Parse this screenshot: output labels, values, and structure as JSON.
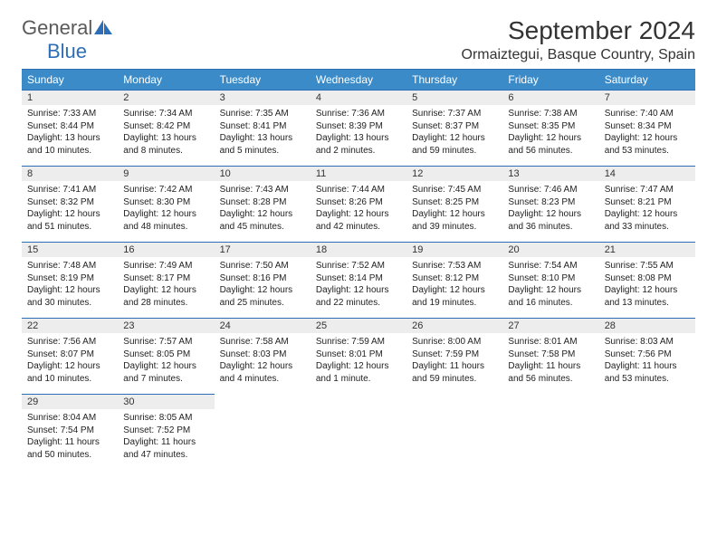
{
  "logo": {
    "text1": "General",
    "text2": "Blue"
  },
  "title": "September 2024",
  "location": "Ormaiztegui, Basque Country, Spain",
  "colors": {
    "header_bg": "#3b8bc8",
    "header_border": "#2d6fb6",
    "daynum_bg": "#ededed",
    "logo_gray": "#5a5a5a",
    "logo_blue": "#2d6fb6"
  },
  "day_names": [
    "Sunday",
    "Monday",
    "Tuesday",
    "Wednesday",
    "Thursday",
    "Friday",
    "Saturday"
  ],
  "weeks": [
    [
      {
        "n": "1",
        "sunrise": "7:33 AM",
        "sunset": "8:44 PM",
        "daylight": "13 hours and 10 minutes."
      },
      {
        "n": "2",
        "sunrise": "7:34 AM",
        "sunset": "8:42 PM",
        "daylight": "13 hours and 8 minutes."
      },
      {
        "n": "3",
        "sunrise": "7:35 AM",
        "sunset": "8:41 PM",
        "daylight": "13 hours and 5 minutes."
      },
      {
        "n": "4",
        "sunrise": "7:36 AM",
        "sunset": "8:39 PM",
        "daylight": "13 hours and 2 minutes."
      },
      {
        "n": "5",
        "sunrise": "7:37 AM",
        "sunset": "8:37 PM",
        "daylight": "12 hours and 59 minutes."
      },
      {
        "n": "6",
        "sunrise": "7:38 AM",
        "sunset": "8:35 PM",
        "daylight": "12 hours and 56 minutes."
      },
      {
        "n": "7",
        "sunrise": "7:40 AM",
        "sunset": "8:34 PM",
        "daylight": "12 hours and 53 minutes."
      }
    ],
    [
      {
        "n": "8",
        "sunrise": "7:41 AM",
        "sunset": "8:32 PM",
        "daylight": "12 hours and 51 minutes."
      },
      {
        "n": "9",
        "sunrise": "7:42 AM",
        "sunset": "8:30 PM",
        "daylight": "12 hours and 48 minutes."
      },
      {
        "n": "10",
        "sunrise": "7:43 AM",
        "sunset": "8:28 PM",
        "daylight": "12 hours and 45 minutes."
      },
      {
        "n": "11",
        "sunrise": "7:44 AM",
        "sunset": "8:26 PM",
        "daylight": "12 hours and 42 minutes."
      },
      {
        "n": "12",
        "sunrise": "7:45 AM",
        "sunset": "8:25 PM",
        "daylight": "12 hours and 39 minutes."
      },
      {
        "n": "13",
        "sunrise": "7:46 AM",
        "sunset": "8:23 PM",
        "daylight": "12 hours and 36 minutes."
      },
      {
        "n": "14",
        "sunrise": "7:47 AM",
        "sunset": "8:21 PM",
        "daylight": "12 hours and 33 minutes."
      }
    ],
    [
      {
        "n": "15",
        "sunrise": "7:48 AM",
        "sunset": "8:19 PM",
        "daylight": "12 hours and 30 minutes."
      },
      {
        "n": "16",
        "sunrise": "7:49 AM",
        "sunset": "8:17 PM",
        "daylight": "12 hours and 28 minutes."
      },
      {
        "n": "17",
        "sunrise": "7:50 AM",
        "sunset": "8:16 PM",
        "daylight": "12 hours and 25 minutes."
      },
      {
        "n": "18",
        "sunrise": "7:52 AM",
        "sunset": "8:14 PM",
        "daylight": "12 hours and 22 minutes."
      },
      {
        "n": "19",
        "sunrise": "7:53 AM",
        "sunset": "8:12 PM",
        "daylight": "12 hours and 19 minutes."
      },
      {
        "n": "20",
        "sunrise": "7:54 AM",
        "sunset": "8:10 PM",
        "daylight": "12 hours and 16 minutes."
      },
      {
        "n": "21",
        "sunrise": "7:55 AM",
        "sunset": "8:08 PM",
        "daylight": "12 hours and 13 minutes."
      }
    ],
    [
      {
        "n": "22",
        "sunrise": "7:56 AM",
        "sunset": "8:07 PM",
        "daylight": "12 hours and 10 minutes."
      },
      {
        "n": "23",
        "sunrise": "7:57 AM",
        "sunset": "8:05 PM",
        "daylight": "12 hours and 7 minutes."
      },
      {
        "n": "24",
        "sunrise": "7:58 AM",
        "sunset": "8:03 PM",
        "daylight": "12 hours and 4 minutes."
      },
      {
        "n": "25",
        "sunrise": "7:59 AM",
        "sunset": "8:01 PM",
        "daylight": "12 hours and 1 minute."
      },
      {
        "n": "26",
        "sunrise": "8:00 AM",
        "sunset": "7:59 PM",
        "daylight": "11 hours and 59 minutes."
      },
      {
        "n": "27",
        "sunrise": "8:01 AM",
        "sunset": "7:58 PM",
        "daylight": "11 hours and 56 minutes."
      },
      {
        "n": "28",
        "sunrise": "8:03 AM",
        "sunset": "7:56 PM",
        "daylight": "11 hours and 53 minutes."
      }
    ],
    [
      {
        "n": "29",
        "sunrise": "8:04 AM",
        "sunset": "7:54 PM",
        "daylight": "11 hours and 50 minutes."
      },
      {
        "n": "30",
        "sunrise": "8:05 AM",
        "sunset": "7:52 PM",
        "daylight": "11 hours and 47 minutes."
      },
      null,
      null,
      null,
      null,
      null
    ]
  ],
  "labels": {
    "sunrise": "Sunrise:",
    "sunset": "Sunset:",
    "daylight": "Daylight:"
  }
}
